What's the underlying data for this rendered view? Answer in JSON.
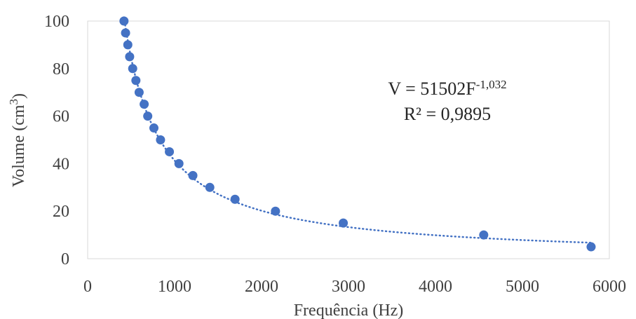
{
  "chart_data": {
    "type": "scatter",
    "title": "",
    "xlabel": "Frequência  (Hz)",
    "ylabel_text": "Volume  (cm",
    "ylabel_sup": "3",
    "ylabel_close": ")",
    "xlim": [
      0,
      6000
    ],
    "ylim": [
      0,
      100
    ],
    "x_ticks": [
      0,
      1000,
      2000,
      3000,
      4000,
      5000,
      6000
    ],
    "y_ticks": [
      0,
      20,
      40,
      60,
      80,
      100
    ],
    "x_tick_labels": [
      "0",
      "1000",
      "2000",
      "3000",
      "4000",
      "5000",
      "6000"
    ],
    "y_tick_labels": [
      "0",
      "20",
      "40",
      "60",
      "80",
      "100"
    ],
    "grid": false,
    "legend": "none",
    "series": [
      {
        "color": "#4472C4",
        "x": [
          418,
          436,
          462,
          483,
          518,
          555,
          592,
          650,
          691,
          762,
          838,
          940,
          1050,
          1210,
          1405,
          1695,
          2160,
          2940,
          4555,
          5790
        ],
        "y": [
          100,
          95,
          90,
          85,
          80,
          75,
          70,
          65,
          60,
          55,
          50,
          45,
          40,
          35,
          30,
          25,
          20,
          15,
          10,
          5
        ]
      }
    ],
    "trendline": {
      "type": "power",
      "coefficient": 51502,
      "exponent": -1.032,
      "style": "dotted",
      "color": "#4472C4",
      "x_range": [
        418,
        5790
      ]
    },
    "annotation": {
      "equation_main": "V = 51502F",
      "equation_sup": "-1,032",
      "r_squared": "R² = 0,9895"
    }
  }
}
